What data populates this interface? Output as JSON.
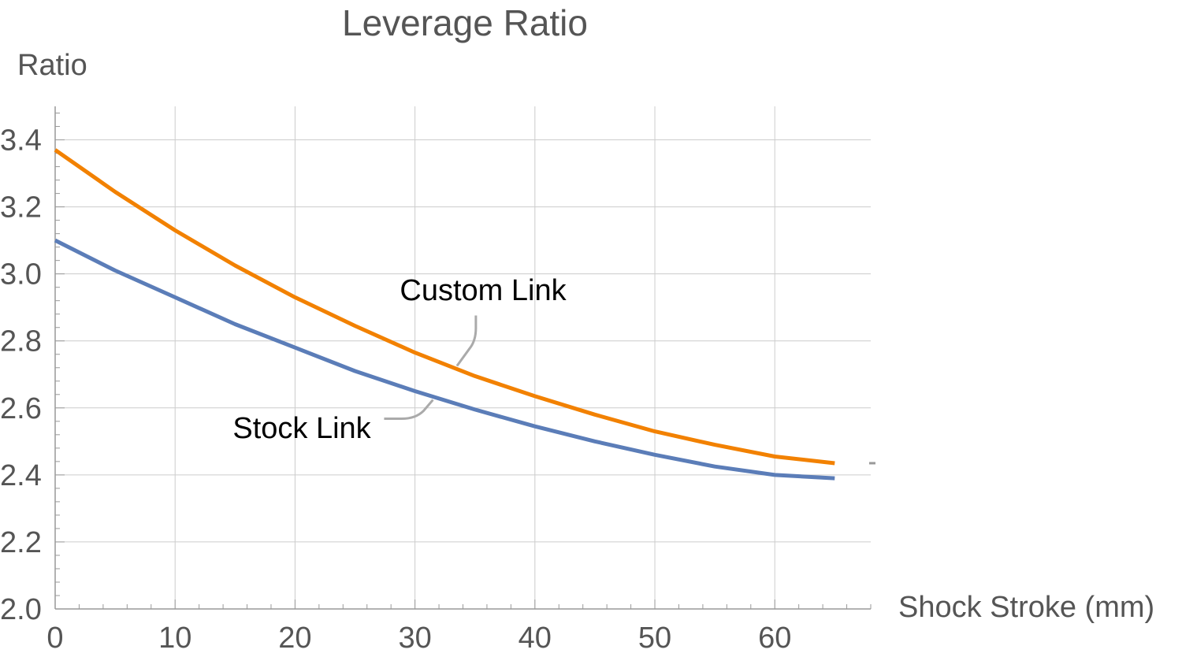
{
  "chart_data": {
    "type": "line",
    "title": "Leverage Ratio",
    "xlabel": "Shock Stroke (mm)",
    "ylabel": "Ratio",
    "xlim": [
      0,
      68
    ],
    "ylim": [
      2.0,
      3.5
    ],
    "xticks": [
      0,
      10,
      20,
      30,
      40,
      50,
      60
    ],
    "xtick_labels": [
      "0",
      "10",
      "20",
      "30",
      "40",
      "50",
      "60"
    ],
    "yticks": [
      2.0,
      2.2,
      2.4,
      2.6,
      2.8,
      3.0,
      3.2,
      3.4
    ],
    "ytick_labels": [
      "2.0",
      "2.2",
      "2.4",
      "2.6",
      "2.8",
      "3.0",
      "3.2",
      "3.4"
    ],
    "grid": true,
    "series": [
      {
        "name": "Custom Link",
        "color": "#f28100",
        "x": [
          0,
          5,
          10,
          15,
          20,
          25,
          30,
          35,
          40,
          45,
          50,
          55,
          60,
          65
        ],
        "y": [
          3.37,
          3.245,
          3.13,
          3.025,
          2.93,
          2.845,
          2.765,
          2.695,
          2.635,
          2.58,
          2.53,
          2.49,
          2.455,
          2.435
        ]
      },
      {
        "name": "Stock Link",
        "color": "#5b7db8",
        "x": [
          0,
          5,
          10,
          15,
          20,
          25,
          30,
          35,
          40,
          45,
          50,
          55,
          60,
          65
        ],
        "y": [
          3.1,
          3.01,
          2.93,
          2.85,
          2.78,
          2.71,
          2.65,
          2.595,
          2.545,
          2.5,
          2.46,
          2.425,
          2.4,
          2.39
        ]
      }
    ],
    "annotations": [
      {
        "text": "Custom Link",
        "series": "Custom Link",
        "at_x": 33.5
      },
      {
        "text": "Stock Link",
        "series": "Stock Link",
        "at_x": 31.5
      }
    ]
  }
}
